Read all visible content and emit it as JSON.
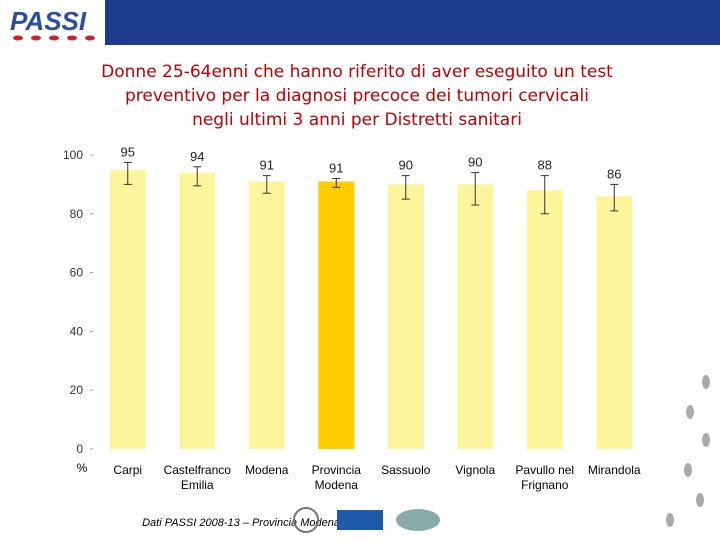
{
  "logo": "PASSI",
  "chart_data": {
    "type": "bar",
    "title_lines": [
      "Donne 25-64enni che hanno riferito di aver eseguito un test",
      "preventivo per la diagnosi precoce dei tumori cervicali",
      "negli ultimi 3 anni per Distretti sanitari"
    ],
    "y_label": "%",
    "categories": [
      "Carpi",
      "Castelfranco Emilia",
      "Modena",
      "Provincia Modena",
      "Sassuolo",
      "Vignola",
      "Pavullo nel Frignano",
      "Mirandola"
    ],
    "values": [
      95,
      94,
      91,
      91,
      90,
      90,
      88,
      86
    ],
    "ci_low": [
      90,
      89.5,
      87,
      89,
      85,
      83,
      80,
      81
    ],
    "ci_high": [
      97.5,
      96,
      93,
      92,
      93,
      94,
      93,
      90
    ],
    "colors": [
      "#fdf59c",
      "#fdf59c",
      "#fdf59c",
      "#ffcc00",
      "#fdf59c",
      "#fdf59c",
      "#fdf59c",
      "#fdf59c"
    ],
    "ylim": [
      0,
      100
    ],
    "yticks": [
      0,
      20,
      40,
      60,
      80,
      100
    ]
  },
  "footer": "Dati PASSI 2008-13 – Provincia Modena"
}
